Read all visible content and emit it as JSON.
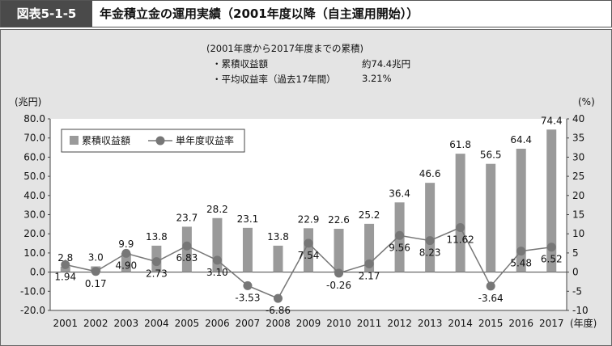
{
  "header": {
    "figure_number": "図表5-1-5",
    "title": "年金積立金の運用実績（2001年度以降（自主運用開始））"
  },
  "note": {
    "heading": "(2001年度から2017年度までの累積)",
    "items": [
      {
        "label": "・累積収益額",
        "value": "約74.4兆円"
      },
      {
        "label": "・平均収益率（過去17年間）",
        "value": "3.21%"
      }
    ]
  },
  "chart_data": {
    "type": "bar+line",
    "categories": [
      "2001",
      "2002",
      "2003",
      "2004",
      "2005",
      "2006",
      "2007",
      "2008",
      "2009",
      "2010",
      "2011",
      "2012",
      "2013",
      "2014",
      "2015",
      "2016",
      "2017"
    ],
    "x_unit": "(年度)",
    "y_left": {
      "label": "(兆円)",
      "range": [
        -20,
        80
      ],
      "ticks": [
        "80.0",
        "70.0",
        "60.0",
        "50.0",
        "40.0",
        "30.0",
        "20.0",
        "10.0",
        "0.0",
        "-10.0",
        "-20.0"
      ]
    },
    "y_right": {
      "label": "(%)",
      "range": [
        -10,
        40
      ],
      "ticks": [
        "40",
        "35",
        "30",
        "25",
        "20",
        "15",
        "10",
        "5",
        "0",
        "-5",
        "-10"
      ]
    },
    "series": [
      {
        "name": "累積収益額",
        "type": "bar",
        "axis": "left",
        "color": "#9a9a9a",
        "values": [
          2.8,
          3.0,
          9.9,
          13.8,
          23.7,
          28.2,
          23.1,
          13.8,
          22.9,
          22.6,
          25.2,
          36.4,
          46.6,
          61.8,
          56.5,
          64.4,
          74.4
        ],
        "labels": [
          "2.8",
          "3.0",
          "9.9",
          "13.8",
          "23.7",
          "28.2",
          "23.1",
          "13.8",
          "22.9",
          "22.6",
          "25.2",
          "36.4",
          "46.6",
          "61.8",
          "56.5",
          "64.4",
          "74.4"
        ]
      },
      {
        "name": "単年度収益率",
        "type": "line",
        "axis": "right",
        "color": "#777777",
        "values": [
          1.94,
          0.17,
          4.9,
          2.73,
          6.83,
          3.1,
          -3.53,
          -6.86,
          7.54,
          -0.26,
          2.17,
          9.56,
          8.23,
          11.62,
          -3.64,
          5.48,
          6.52
        ],
        "labels": [
          "1.94",
          "0.17",
          "4.90",
          "2.73",
          "6.83",
          "3.10",
          "-3.53",
          "-6.86",
          "7.54",
          "-0.26",
          "2.17",
          "9.56",
          "8.23",
          "11.62",
          "-3.64",
          "5.48",
          "6.52"
        ]
      }
    ],
    "legend": "top-left",
    "grid": false
  }
}
